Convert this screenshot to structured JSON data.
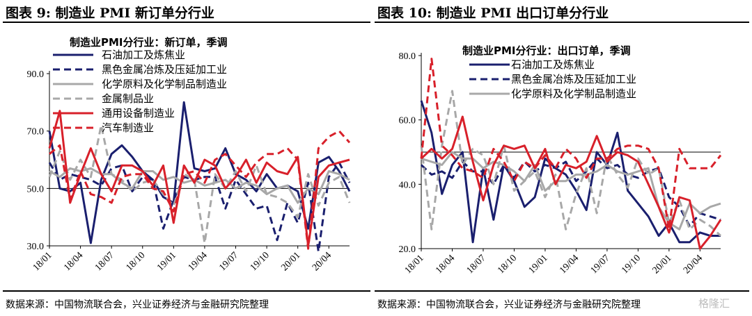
{
  "watermark": "格隆汇",
  "colors": {
    "navy": "#1a1f6e",
    "gray": "#a8a8a8",
    "red": "#d8202a"
  },
  "figures": [
    {
      "title": "图表 9:  制造业 PMI 新订单分行业",
      "source": "数据来源：中国物流联合会，兴业证券经济与金融研究院整理"
    },
    {
      "title": "图表 10:  制造业 PMI 出口订单分行业",
      "source": "数据来源：中国物流联合会，兴业证券经济与金融研究院整理"
    }
  ],
  "chart_data": [
    {
      "type": "line",
      "title": "制造业PMI分行业：新订单，季调",
      "x": [
        "18/01",
        "18/02",
        "18/03",
        "18/04",
        "18/05",
        "18/06",
        "18/07",
        "18/08",
        "18/09",
        "18/10",
        "18/11",
        "18/12",
        "19/01",
        "19/02",
        "19/03",
        "19/04",
        "19/05",
        "19/06",
        "19/07",
        "19/08",
        "19/09",
        "19/10",
        "19/11",
        "19/12",
        "20/01",
        "20/02",
        "20/03",
        "20/04",
        "20/05",
        "20/06"
      ],
      "xticks": [
        "18/01",
        "18/04",
        "18/07",
        "18/10",
        "19/01",
        "19/04",
        "19/07",
        "19/10",
        "20/01",
        "20/04"
      ],
      "ylim": [
        30,
        90
      ],
      "yticks": [
        "30.0",
        "50.0",
        "70.0",
        "90.0"
      ],
      "reference": 50,
      "series": [
        {
          "name": "石油加工及炼焦业",
          "color": "#1a1f6e",
          "style": "solid",
          "values": [
            70,
            50,
            49,
            52,
            31,
            53,
            62,
            65,
            61,
            56,
            53,
            47,
            45,
            80,
            57,
            56,
            57,
            64,
            55,
            53,
            49,
            55,
            50,
            51,
            49,
            36,
            59,
            61,
            56,
            49
          ]
        },
        {
          "name": "黑色金属冶炼及压延加工业",
          "color": "#1a1f6e",
          "style": "dashed",
          "values": [
            59,
            53,
            55,
            54,
            53,
            51,
            57,
            58,
            49,
            54,
            53,
            36,
            46,
            54,
            53,
            54,
            54,
            43,
            53,
            48,
            43,
            44,
            32,
            45,
            38,
            52,
            28,
            54,
            59,
            52
          ]
        },
        {
          "name": "化学原料及化学制品制造业",
          "color": "#a8a8a8",
          "style": "solid",
          "values": [
            56,
            54,
            57,
            56,
            57,
            55,
            55,
            52,
            50,
            56,
            56,
            53,
            54,
            52,
            53,
            51,
            52,
            53,
            50,
            52,
            51,
            48,
            50,
            51,
            45,
            50,
            48,
            56,
            55,
            53
          ]
        },
        {
          "name": "金属制品业",
          "color": "#a8a8a8",
          "style": "dashed",
          "values": [
            54,
            63,
            53,
            60,
            54,
            72,
            55,
            53,
            49,
            52,
            53,
            48,
            44,
            55,
            53,
            31,
            55,
            50,
            56,
            49,
            58,
            48,
            47,
            45,
            40,
            55,
            44,
            52,
            54,
            45
          ]
        },
        {
          "name": "通用设备制造业",
          "color": "#d8202a",
          "style": "solid",
          "values": [
            64,
            77,
            45,
            55,
            64,
            55,
            49,
            58,
            58,
            56,
            51,
            58,
            38,
            58,
            52,
            60,
            58,
            50,
            54,
            60,
            52,
            59,
            56,
            55,
            61,
            30,
            54,
            58,
            59,
            60
          ]
        },
        {
          "name": "汽车制造业",
          "color": "#d8202a",
          "style": "dashed",
          "values": [
            62,
            65,
            46,
            56,
            48,
            47,
            45,
            54,
            55,
            55,
            50,
            49,
            42,
            55,
            56,
            52,
            60,
            62,
            58,
            54,
            59,
            62,
            62,
            64,
            60,
            29,
            64,
            68,
            70,
            66
          ]
        }
      ]
    },
    {
      "type": "line",
      "title": "制造业PMI分行业：出口订单，季调",
      "x": [
        "18/01",
        "18/02",
        "18/03",
        "18/04",
        "18/05",
        "18/06",
        "18/07",
        "18/08",
        "18/09",
        "18/10",
        "18/11",
        "18/12",
        "19/01",
        "19/02",
        "19/03",
        "19/04",
        "19/05",
        "19/06",
        "19/07",
        "19/08",
        "19/09",
        "19/10",
        "19/11",
        "19/12",
        "20/01",
        "20/02",
        "20/03",
        "20/04",
        "20/05",
        "20/06"
      ],
      "xticks": [
        "18/01",
        "18/04",
        "18/07",
        "18/10",
        "19/01",
        "19/04",
        "19/07",
        "19/10",
        "20/01",
        "20/04"
      ],
      "ylim": [
        20,
        80
      ],
      "yticks": [
        "20.0",
        "40.0",
        "60.0",
        "80.0"
      ],
      "reference": 50,
      "series": [
        {
          "name": "石油加工及炼焦业",
          "color": "#1a1f6e",
          "style": "solid",
          "values": [
            66,
            56,
            37,
            46,
            50,
            22,
            45,
            29,
            46,
            41,
            33,
            36,
            48,
            45,
            43,
            38,
            32,
            50,
            46,
            56,
            38,
            34,
            30,
            24,
            28,
            22,
            22,
            25,
            24,
            24
          ]
        },
        {
          "name": "黑色金属冶炼及压延加工业",
          "color": "#1a1f6e",
          "style": "dashed",
          "values": [
            46,
            43,
            44,
            42,
            47,
            44,
            44,
            40,
            46,
            42,
            47,
            44,
            46,
            45,
            47,
            41,
            44,
            48,
            45,
            46,
            43,
            42,
            44,
            45,
            36,
            33,
            27,
            31,
            30,
            29
          ]
        },
        {
          "name": "化学原料及化学制品制造业",
          "color": "#a8a8a8",
          "style": "solid",
          "values": [
            48,
            47,
            46,
            50,
            48,
            48,
            45,
            47,
            46,
            44,
            41,
            46,
            38,
            41,
            41,
            43,
            43,
            44,
            46,
            44,
            43,
            44,
            45,
            33,
            28,
            26,
            34,
            31,
            33,
            34
          ]
        },
        {
          "name": "",
          "color": "#a8a8a8",
          "style": "dashed",
          "values": [
            52,
            26,
            52,
            69,
            46,
            51,
            49,
            40,
            52,
            38,
            41,
            44,
            36,
            43,
            26,
            37,
            45,
            31,
            49,
            43,
            39,
            48,
            43,
            45,
            28,
            35,
            26,
            29,
            27,
            24
          ]
        },
        {
          "name": "",
          "color": "#d8202a",
          "style": "solid",
          "values": [
            48,
            51,
            48,
            51,
            61,
            47,
            35,
            46,
            52,
            51,
            52,
            45,
            51,
            40,
            46,
            45,
            47,
            55,
            47,
            50,
            49,
            47,
            40,
            33,
            25,
            36,
            35,
            20,
            24,
            29
          ]
        },
        {
          "name": "",
          "color": "#d8202a",
          "style": "dashed",
          "values": [
            48,
            79,
            52,
            49,
            45,
            44,
            42,
            51,
            47,
            41,
            47,
            45,
            49,
            45,
            51,
            48,
            42,
            48,
            48,
            51,
            52,
            52,
            51,
            45,
            26,
            51,
            45,
            45,
            45,
            49
          ]
        }
      ]
    }
  ]
}
